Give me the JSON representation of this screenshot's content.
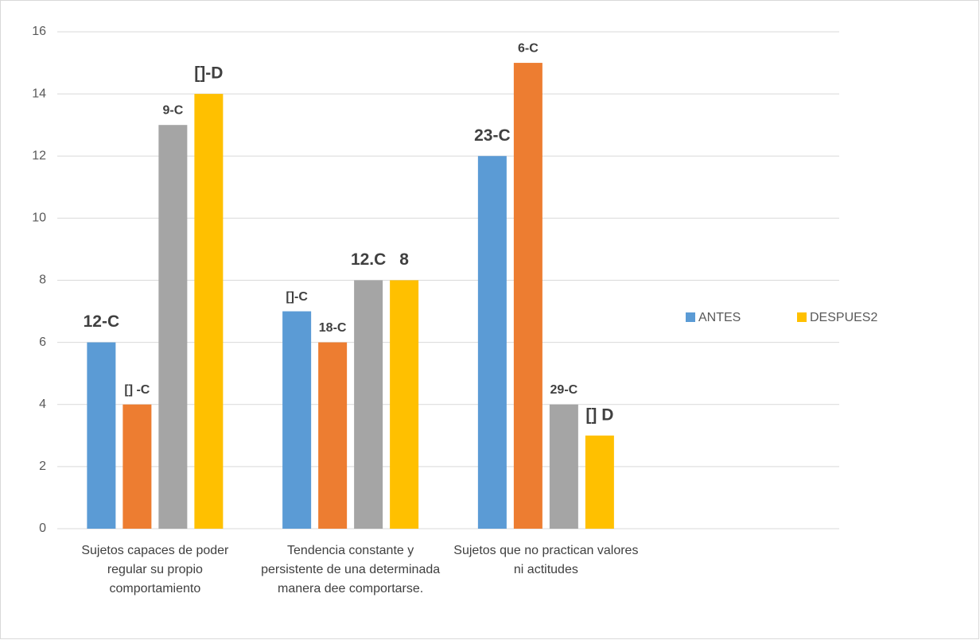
{
  "chart_data": {
    "type": "bar",
    "categories": [
      "Sujetos capaces de poder regular su propio comportamiento",
      "Tendencia constante y persistente de una determinada manera dee comportarse.",
      "Sujetos que no practican valores ni actitudes",
      null
    ],
    "series": [
      {
        "name": "ANTES",
        "color": "#5b9bd5",
        "values": [
          6,
          7,
          12,
          null
        ],
        "labels": [
          "12-C",
          "[]-C",
          "23-C",
          null
        ]
      },
      {
        "color": "#ed7d31",
        "values": [
          4,
          6,
          15,
          null
        ],
        "labels": [
          "[]  -C",
          "18-C",
          "6-C",
          null
        ]
      },
      {
        "color": "#a5a5a5",
        "values": [
          13,
          8,
          4,
          null
        ],
        "labels": [
          "9-C",
          "12.C",
          "29-C",
          null
        ]
      },
      {
        "name": "DESPUES2",
        "color": "#ffc000",
        "values": [
          14,
          8,
          3,
          null
        ],
        "labels": [
          "[]-D",
          "8",
          "[] D",
          null
        ]
      }
    ],
    "ylim": [
      0,
      16
    ],
    "yticks": [
      0,
      2,
      4,
      6,
      8,
      10,
      12,
      14,
      16
    ],
    "grid": true,
    "legend": "right"
  }
}
